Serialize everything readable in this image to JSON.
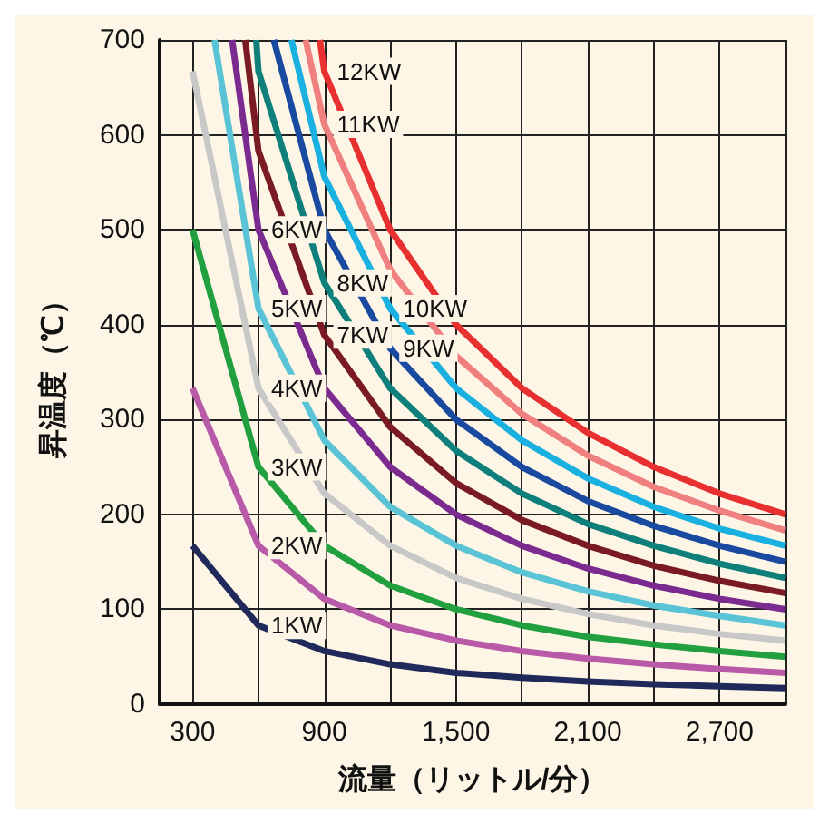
{
  "chart_data": {
    "type": "line",
    "xlabel": "流量（リットル/分）",
    "ylabel": "昇温度（℃）",
    "xlim": [
      150,
      3000
    ],
    "xticks": [
      300,
      {
        "value": 600,
        "label": null
      },
      900,
      {
        "value": 1200,
        "label": null
      },
      {
        "value": 1500,
        "label": "1,500"
      },
      {
        "value": 1800,
        "label": null
      },
      {
        "value": 2100,
        "label": "2,100"
      },
      {
        "value": 2400,
        "label": null
      },
      {
        "value": 2700,
        "label": "2,700"
      },
      {
        "value": 3000,
        "label": null
      }
    ],
    "ylim": [
      0,
      700
    ],
    "yticks": [
      0,
      100,
      200,
      300,
      400,
      500,
      600,
      700
    ],
    "grid": true,
    "legend": false,
    "marker": "none",
    "line_style": "solid",
    "series": [
      {
        "name": "1KW",
        "color": "#1f2a5a",
        "x": [
          300,
          600,
          900,
          1200,
          1500,
          1800,
          2100,
          2400,
          2700,
          3000
        ],
        "values": [
          167,
          83,
          56,
          42,
          33,
          28,
          24,
          21,
          19,
          17
        ]
      },
      {
        "name": "2KW",
        "color": "#b85aa8",
        "x": [
          300,
          600,
          900,
          1200,
          1500,
          1800,
          2100,
          2400,
          2700,
          3000
        ],
        "values": [
          333,
          167,
          111,
          83,
          67,
          56,
          48,
          42,
          37,
          33
        ]
      },
      {
        "name": "3KW",
        "color": "#22a040",
        "x": [
          300,
          600,
          900,
          1200,
          1500,
          1800,
          2100,
          2400,
          2700,
          3000
        ],
        "values": [
          500,
          250,
          167,
          125,
          100,
          83,
          71,
          63,
          56,
          50
        ]
      },
      {
        "name": "4KW",
        "color": "#c8c8c8",
        "x": [
          300,
          600,
          900,
          1200,
          1500,
          1800,
          2100,
          2400,
          2700,
          3000
        ],
        "values": [
          667,
          333,
          222,
          167,
          133,
          111,
          95,
          83,
          74,
          67
        ]
      },
      {
        "name": "5KW",
        "color": "#5bc3d6",
        "x": [
          400,
          600,
          900,
          1200,
          1500,
          1800,
          2100,
          2400,
          2700,
          3000
        ],
        "values": [
          700,
          417,
          278,
          208,
          167,
          139,
          119,
          104,
          93,
          83
        ]
      },
      {
        "name": "6KW",
        "color": "#7b2a8f",
        "x": [
          480,
          600,
          900,
          1200,
          1500,
          1800,
          2100,
          2400,
          2700,
          3000
        ],
        "values": [
          700,
          500,
          333,
          250,
          200,
          167,
          143,
          125,
          111,
          100
        ]
      },
      {
        "name": "7KW",
        "color": "#7a1a22",
        "x": [
          540,
          600,
          900,
          1200,
          1500,
          1800,
          2100,
          2400,
          2700,
          3000
        ],
        "values": [
          700,
          583,
          389,
          292,
          233,
          194,
          167,
          146,
          130,
          117
        ]
      },
      {
        "name": "8KW",
        "color": "#0e7f7a",
        "x": [
          590,
          600,
          900,
          1200,
          1500,
          1800,
          2100,
          2400,
          2700,
          3000
        ],
        "values": [
          700,
          667,
          444,
          333,
          267,
          222,
          190,
          167,
          148,
          133
        ]
      },
      {
        "name": "9KW",
        "color": "#1a4aa0",
        "x": [
          670,
          900,
          1200,
          1500,
          1800,
          2100,
          2400,
          2700,
          3000
        ],
        "values": [
          700,
          500,
          375,
          300,
          250,
          214,
          188,
          167,
          150
        ]
      },
      {
        "name": "10KW",
        "color": "#1ab0e0",
        "x": [
          750,
          900,
          1200,
          1500,
          1800,
          2100,
          2400,
          2700,
          3000
        ],
        "values": [
          700,
          556,
          417,
          333,
          278,
          238,
          208,
          185,
          167
        ]
      },
      {
        "name": "11KW",
        "color": "#f08080",
        "x": [
          815,
          900,
          1200,
          1500,
          1800,
          2100,
          2400,
          2700,
          3000
        ],
        "values": [
          700,
          611,
          458,
          367,
          306,
          262,
          229,
          204,
          183
        ]
      },
      {
        "name": "12KW",
        "color": "#e83030",
        "x": [
          880,
          900,
          1200,
          1500,
          1800,
          2100,
          2400,
          2700,
          3000
        ],
        "values": [
          700,
          667,
          500,
          400,
          333,
          286,
          250,
          222,
          200
        ]
      }
    ]
  }
}
